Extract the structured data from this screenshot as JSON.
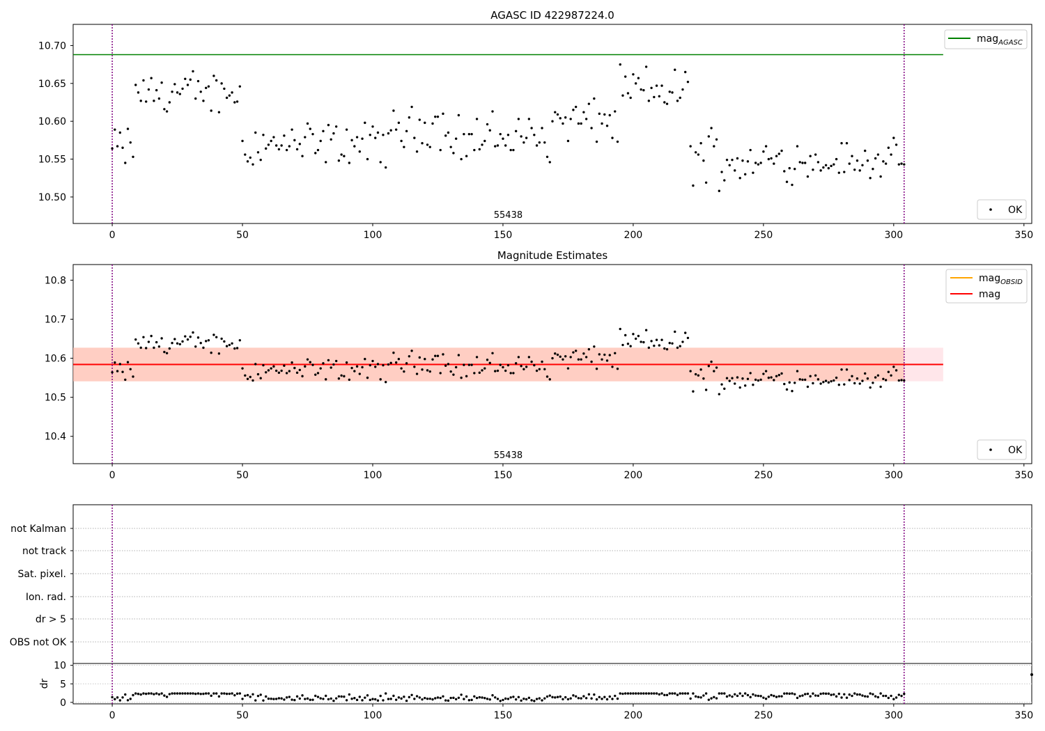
{
  "chart_data": [
    {
      "type": "scatter",
      "title": "AGASC ID 422987224.0",
      "xlim": [
        -15,
        353
      ],
      "ylim": [
        10.465,
        10.728
      ],
      "xticks": [
        0,
        50,
        100,
        150,
        200,
        250,
        300,
        350
      ],
      "xtick_labels": [
        "0",
        "50",
        "100",
        "150",
        "200",
        "250",
        "300",
        "350"
      ],
      "yticks": [
        10.5,
        10.55,
        10.6,
        10.65,
        10.7
      ],
      "ytick_labels": [
        "10.50",
        "10.55",
        "10.60",
        "10.65",
        "10.70"
      ],
      "obsid_label": "55438",
      "vlines": [
        0,
        304
      ],
      "hline": {
        "y": 10.688,
        "x_end": 319,
        "color": "#008000"
      },
      "legend": [
        {
          "label": "mag",
          "sub": "AGASC",
          "kind": "line",
          "color": "#008000",
          "position": "top-right"
        },
        {
          "label": "OK",
          "kind": "point",
          "color": "#000000",
          "position": "bottom-right"
        }
      ],
      "series": [
        {
          "name": "OK",
          "y": []
        }
      ]
    },
    {
      "type": "scatter",
      "title": "Magnitude Estimates",
      "xlim": [
        -15,
        353
      ],
      "ylim": [
        10.33,
        10.84
      ],
      "xticks": [
        0,
        50,
        100,
        150,
        200,
        250,
        300,
        350
      ],
      "xtick_labels": [
        "0",
        "50",
        "100",
        "150",
        "200",
        "250",
        "300",
        "350"
      ],
      "yticks": [
        10.4,
        10.5,
        10.6,
        10.7,
        10.8
      ],
      "ytick_labels": [
        "10.4",
        "10.5",
        "10.6",
        "10.7",
        "10.8"
      ],
      "obsid_label": "55438",
      "vlines": [
        0,
        304
      ],
      "mag_line": {
        "y": 10.584,
        "x_end": 319,
        "color": "#ff0000"
      },
      "bands": [
        {
          "y0": 10.541,
          "y1": 10.627,
          "x0": -15,
          "x1": 304,
          "color": "#ffb080",
          "opacity": 0.5
        },
        {
          "y0": 10.541,
          "y1": 10.627,
          "x0": -15,
          "x1": 319,
          "color": "#ffc0cb",
          "opacity": 0.4
        }
      ],
      "legend": [
        {
          "label": "mag",
          "sub": "OBSID",
          "kind": "line",
          "color": "#ffa500",
          "position": "top-right"
        },
        {
          "label": "mag",
          "kind": "line",
          "color": "#ff0000",
          "position": "top-right"
        },
        {
          "label": "OK",
          "kind": "point",
          "color": "#000000",
          "position": "bottom-right"
        }
      ]
    },
    {
      "type": "scatter",
      "xlim": [
        -15,
        353
      ],
      "flag_labels": [
        "not Kalman",
        "not track",
        "Sat. pixel.",
        "Ion. rad.",
        "dr > 5",
        "OBS not OK"
      ],
      "vlines": [
        0,
        304
      ]
    },
    {
      "type": "scatter",
      "ylabel": "dr",
      "xlim": [
        -15,
        353
      ],
      "ylim": [
        -0.4,
        10.5
      ],
      "yticks": [
        0,
        5,
        10
      ],
      "ytick_labels": [
        "0",
        "5",
        "10"
      ],
      "xticks": [
        0,
        50,
        100,
        150,
        200,
        250,
        300,
        350
      ],
      "xtick_labels": [
        "0",
        "50",
        "100",
        "150",
        "200",
        "250",
        "300",
        "350"
      ],
      "vlines": [
        0,
        304
      ],
      "series": [
        {
          "name": "dr",
          "y": []
        }
      ]
    }
  ]
}
